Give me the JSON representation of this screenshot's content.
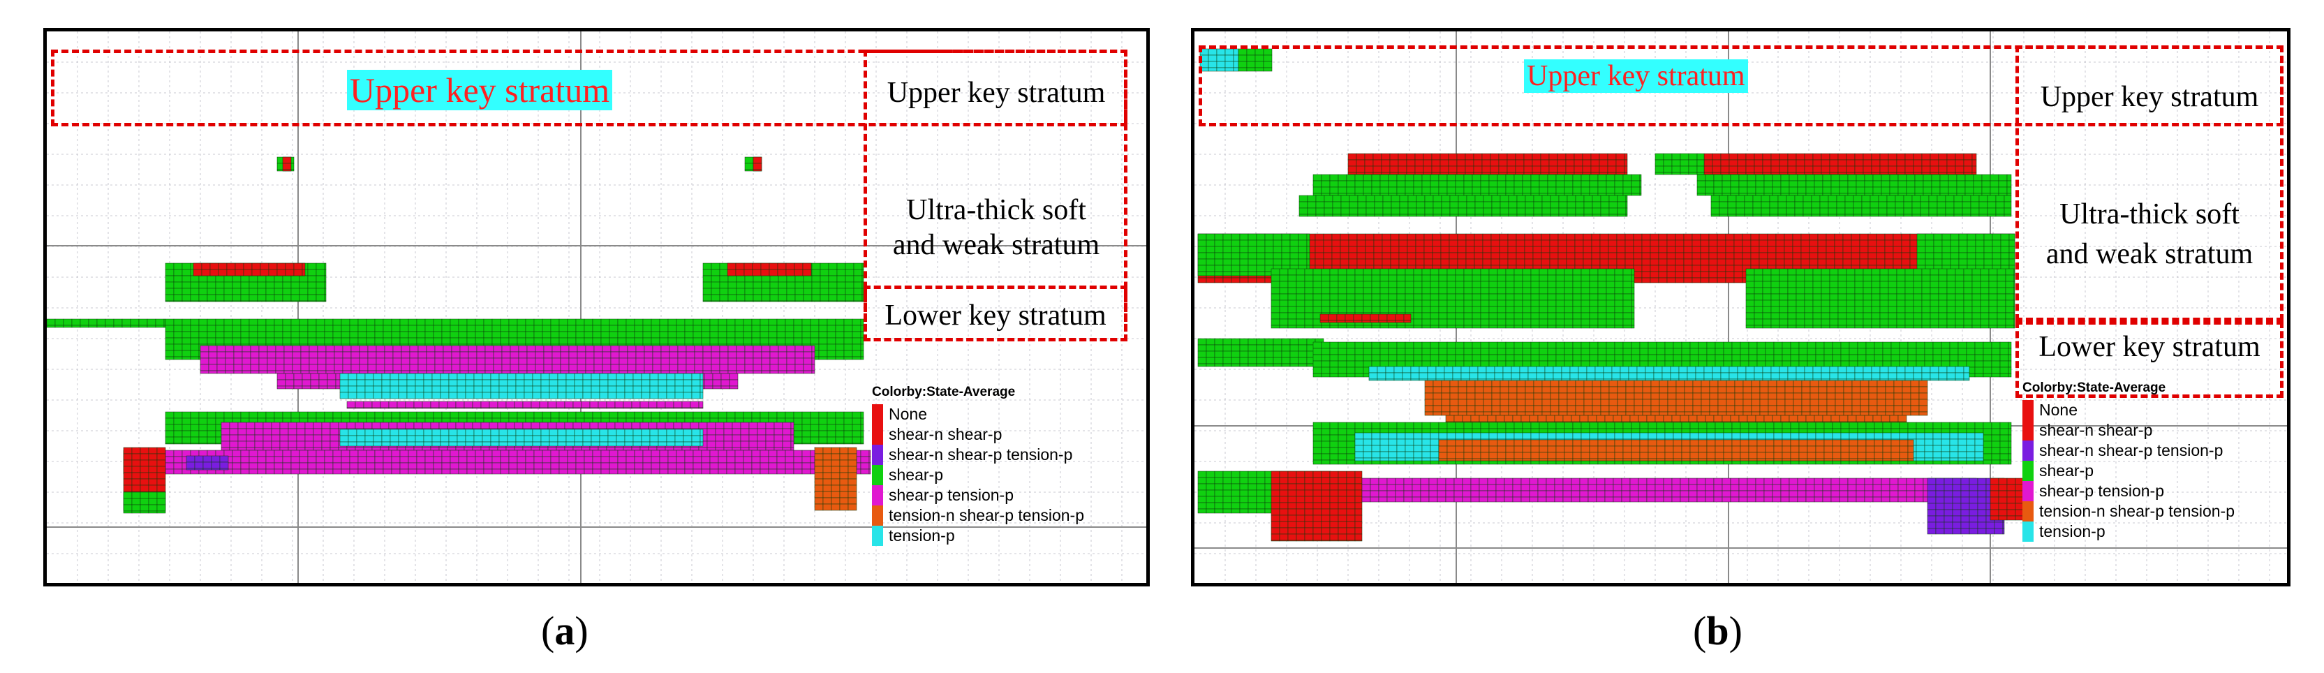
{
  "colors": {
    "none": "#e81010",
    "shear_n_shear_p": "#e81010",
    "shear_n_shear_p_tension_p": "#7a1de0",
    "shear_p": "#10d010",
    "shear_p_tension_p": "#e018d0",
    "tension_n_shear_p_tension_p": "#e85a10",
    "tension_p": "#28e4e8",
    "grid": "#c8c8d0",
    "dash": "#e00000"
  },
  "legend": {
    "title": "Colorby:State-Average",
    "items": [
      {
        "label": "None",
        "color_key": "none"
      },
      {
        "label": "shear-n shear-p",
        "color_key": "shear_n_shear_p"
      },
      {
        "label": "shear-n shear-p tension-p",
        "color_key": "shear_n_shear_p_tension_p"
      },
      {
        "label": "shear-p",
        "color_key": "shear_p"
      },
      {
        "label": "shear-p tension-p",
        "color_key": "shear_p_tension_p"
      },
      {
        "label": "tension-n shear-p tension-p",
        "color_key": "tension_n_shear_p_tension_p"
      },
      {
        "label": "tension-p",
        "color_key": "tension_p"
      }
    ]
  },
  "panels": [
    {
      "caption_open": "(",
      "caption_letter": "a",
      "caption_close": ")",
      "title": "Upper key stratum",
      "labels": {
        "upper": "Upper key stratum",
        "ultra_line1": "Ultra-thick  soft",
        "ultra_line2": "and weak stratum",
        "lower": "Lower key stratum"
      }
    },
    {
      "caption_open": "(",
      "caption_letter": "b",
      "caption_close": ")",
      "title": "Upper key stratum",
      "labels": {
        "upper": "Upper key stratum",
        "ultra_line1": "Ultra-thick  soft",
        "ultra_line2": "and weak stratum",
        "lower": "Lower key stratum"
      }
    }
  ]
}
